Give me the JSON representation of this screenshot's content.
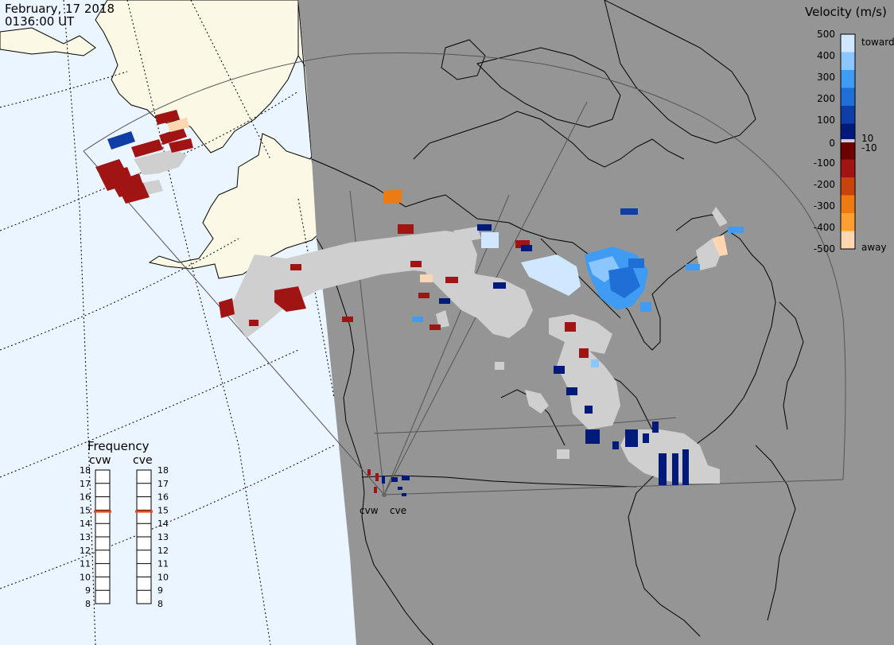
{
  "header": {
    "date": "February, 17 2018",
    "time": "0136:00 UT"
  },
  "colors": {
    "ocean_day": "#eaf5ff",
    "land_day": "#fbf9e6",
    "night": "#959595",
    "ground_scatter": "#cfcfcf",
    "fov_line": "#555555"
  },
  "legend": {
    "title": "Velocity (m/s)",
    "ticks": [
      "500",
      "400",
      "300",
      "200",
      "100",
      "10",
      "0",
      "-10",
      "-100",
      "-200",
      "-300",
      "-400",
      "-500"
    ],
    "toward_label": "toward",
    "away_label": "away",
    "colors": [
      "#cfe8ff",
      "#8cc6ff",
      "#3f9cf2",
      "#1f6fd6",
      "#0f3fa6",
      "#001a7a",
      "#6e0000",
      "#a01414",
      "#c8430e",
      "#f07a12",
      "#ff9f33",
      "#ffd6b0"
    ]
  },
  "frequency": {
    "title": "Frequency",
    "radars": [
      "cvw",
      "cve"
    ],
    "scale": [
      "18",
      "17",
      "16",
      "15",
      "14",
      "13",
      "12",
      "11",
      "10",
      "9",
      "8"
    ],
    "values_mhz": [
      14.9,
      14.9
    ],
    "marker_color": "#e64a19"
  },
  "sites": [
    {
      "name": "cvw"
    },
    {
      "name": "cve"
    }
  ]
}
